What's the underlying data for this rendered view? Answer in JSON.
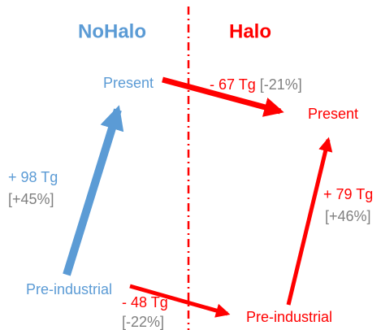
{
  "headers": {
    "left": "NoHalo",
    "right": "Halo"
  },
  "nodes": [
    {
      "label": "Present"
    },
    {
      "label": "Present"
    },
    {
      "label": "Pre-industrial"
    },
    {
      "label": "Pre-industrial"
    }
  ],
  "edges": [
    {
      "change": "- 67 Tg",
      "percent": "[-21%]"
    },
    {
      "change": "+ 98 Tg",
      "percent": "[+45%]"
    },
    {
      "change": "+ 79 Tg",
      "percent": "[+46%]"
    },
    {
      "change": "- 48 Tg",
      "percent": "[-22%]"
    }
  ]
}
